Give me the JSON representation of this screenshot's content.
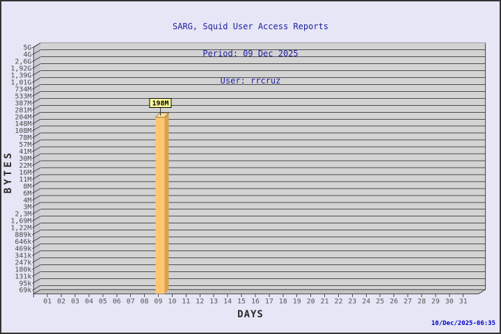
{
  "window": {
    "background": "#E6E6F6",
    "border_color": "#333333"
  },
  "header": {
    "title": "SARG, Squid User Access Reports",
    "period_line": "Period: 09 Dec 2025",
    "user_line": "User: rrcruz",
    "text_color": "#2121A3"
  },
  "footer": {
    "generated_timestamp": "10/Dec/2025-06:35",
    "color": "#0000CC"
  },
  "chart_data": {
    "type": "bar",
    "style": "3d",
    "title": "SARG, Squid User Access Reports",
    "xlabel": "DAYS",
    "ylabel": "BYTES",
    "grid": "horizontal",
    "x_ticks": [
      "01",
      "02",
      "03",
      "04",
      "05",
      "06",
      "07",
      "08",
      "09",
      "10",
      "11",
      "12",
      "13",
      "14",
      "15",
      "16",
      "17",
      "18",
      "19",
      "20",
      "21",
      "22",
      "23",
      "24",
      "25",
      "26",
      "27",
      "28",
      "29",
      "30",
      "31"
    ],
    "y_tick_labels": [
      "5G",
      "4G",
      "2,6G",
      "1,92G",
      "1,39G",
      "1,01G",
      "734M",
      "533M",
      "387M",
      "281M",
      "204M",
      "148M",
      "108M",
      "78M",
      "57M",
      "41M",
      "30M",
      "22M",
      "16M",
      "11M",
      "8M",
      "6M",
      "4M",
      "3M",
      "2,3M",
      "1,69M",
      "1,22M",
      "889k",
      "646k",
      "469k",
      "341k",
      "247k",
      "180k",
      "131k",
      "95k",
      "69k"
    ],
    "y_tick_bytes": [
      5000000000,
      4000000000,
      2600000000,
      1920000000,
      1390000000,
      1010000000,
      734000000,
      533000000,
      387000000,
      281000000,
      204000000,
      148000000,
      108000000,
      78000000,
      57000000,
      41000000,
      30000000,
      22000000,
      16000000,
      11000000,
      8000000,
      6000000,
      4000000,
      3000000,
      2300000,
      1690000,
      1220000,
      889000,
      646000,
      469000,
      341000,
      247000,
      180000,
      131000,
      95000,
      69000
    ],
    "bars": [
      {
        "x": "09",
        "value_label": "198M",
        "value_bytes": 198000000
      }
    ],
    "colors": {
      "face": "#D3D3D3",
      "wall": "#C9C9D2",
      "floor": "#C6C6C6",
      "grid_line": "#4A4A4A",
      "edge_line": "#3F3F3F",
      "y_tick_text": "#4A4A4A",
      "x_tick_text": "#555555",
      "bar_front": "#FFC672",
      "bar_side": "#D9A24C",
      "bar_top": "#FFDD9E",
      "value_box_bg": "#FFFF9E",
      "value_box_border": "#000000",
      "value_text": "#000000"
    }
  }
}
